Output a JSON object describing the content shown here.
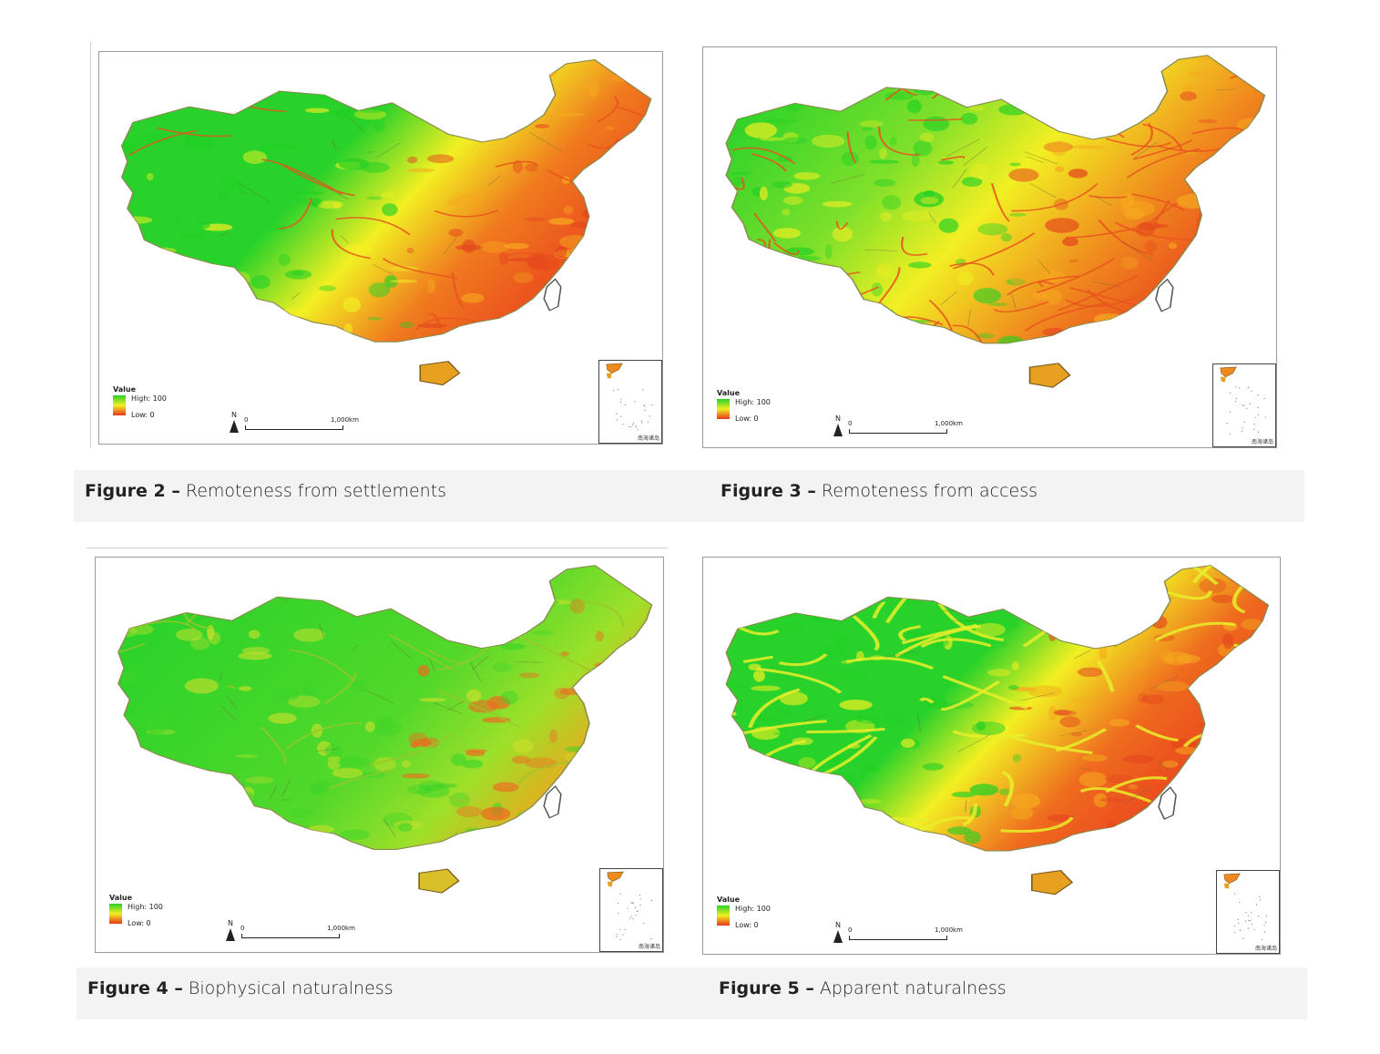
{
  "figures": [
    {
      "id": "fig2",
      "label": "Figure 2 –",
      "title": "Remoteness from settlements",
      "style": "settlements"
    },
    {
      "id": "fig3",
      "label": "Figure 3 –",
      "title": "Remoteness from access",
      "style": "access"
    },
    {
      "id": "fig4",
      "label": "Figure 4 –",
      "title": "Biophysical naturalness",
      "style": "biophysical"
    },
    {
      "id": "fig5",
      "label": "Figure 5 –",
      "title": "Apparent naturalness",
      "style": "apparent"
    }
  ],
  "legend": {
    "title": "Value",
    "high": "High: 100",
    "low": "Low: 0"
  },
  "north_label": "N",
  "scale": {
    "zero": "0",
    "distance": "1,000km"
  },
  "inset_label": "南海诸岛",
  "colors": {
    "high": "#28d22a",
    "mid": "#f2ef22",
    "low": "#e8341d",
    "caption_bg": "#f3f3f3"
  }
}
